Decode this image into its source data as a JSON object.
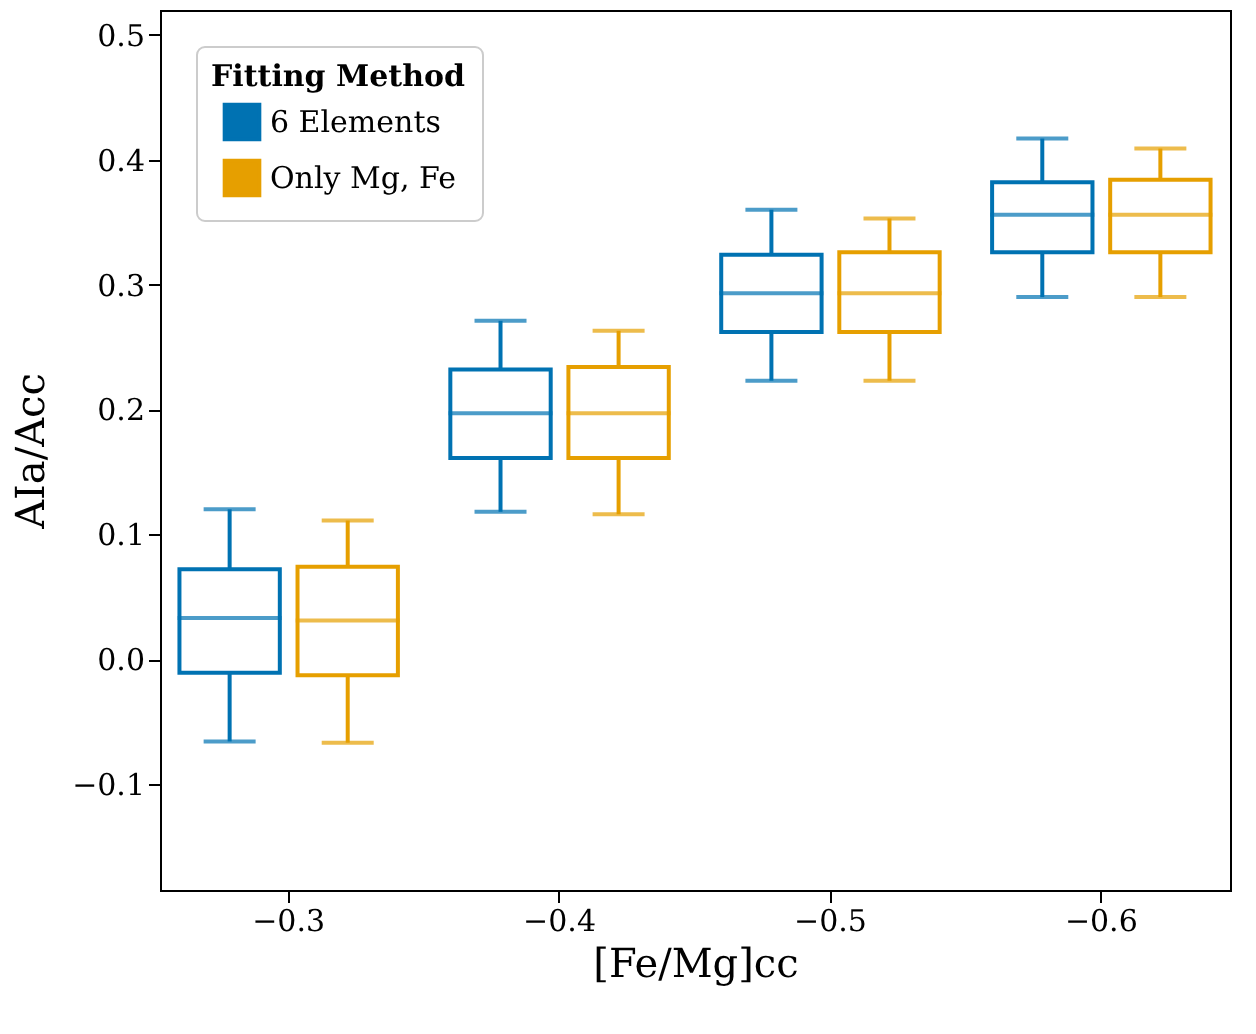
{
  "chart_data": {
    "type": "box",
    "xlabel": "[Fe/Mg]cc",
    "ylabel": "AIa/Acc",
    "legend_title": "Fitting Method",
    "legend": "top left",
    "grid": false,
    "categories": [
      "−0.3",
      "−0.4",
      "−0.5",
      "−0.6"
    ],
    "ylim": [
      -0.185,
      0.52
    ],
    "yticks": [
      -0.1,
      {
        "value": 0,
        "label": "0.0"
      },
      0.1,
      0.2,
      0.3,
      0.4,
      0.5
    ],
    "series": [
      {
        "name": "6 Elements",
        "color": "#0072b2",
        "boxes": [
          {
            "low": -0.066,
            "q1": -0.011,
            "median": 0.033,
            "q3": 0.072,
            "high": 0.12
          },
          {
            "low": 0.118,
            "q1": 0.161,
            "median": 0.197,
            "q3": 0.232,
            "high": 0.271
          },
          {
            "low": 0.223,
            "q1": 0.262,
            "median": 0.293,
            "q3": 0.324,
            "high": 0.36
          },
          {
            "low": 0.29,
            "q1": 0.326,
            "median": 0.356,
            "q3": 0.382,
            "high": 0.417
          }
        ]
      },
      {
        "name": "Only Mg, Fe",
        "color": "#e69f00",
        "boxes": [
          {
            "low": -0.067,
            "q1": -0.013,
            "median": 0.031,
            "q3": 0.074,
            "high": 0.111
          },
          {
            "low": 0.116,
            "q1": 0.161,
            "median": 0.197,
            "q3": 0.234,
            "high": 0.263
          },
          {
            "low": 0.223,
            "q1": 0.262,
            "median": 0.293,
            "q3": 0.326,
            "high": 0.353
          },
          {
            "low": 0.29,
            "q1": 0.326,
            "median": 0.356,
            "q3": 0.384,
            "high": 0.409
          }
        ]
      }
    ]
  }
}
